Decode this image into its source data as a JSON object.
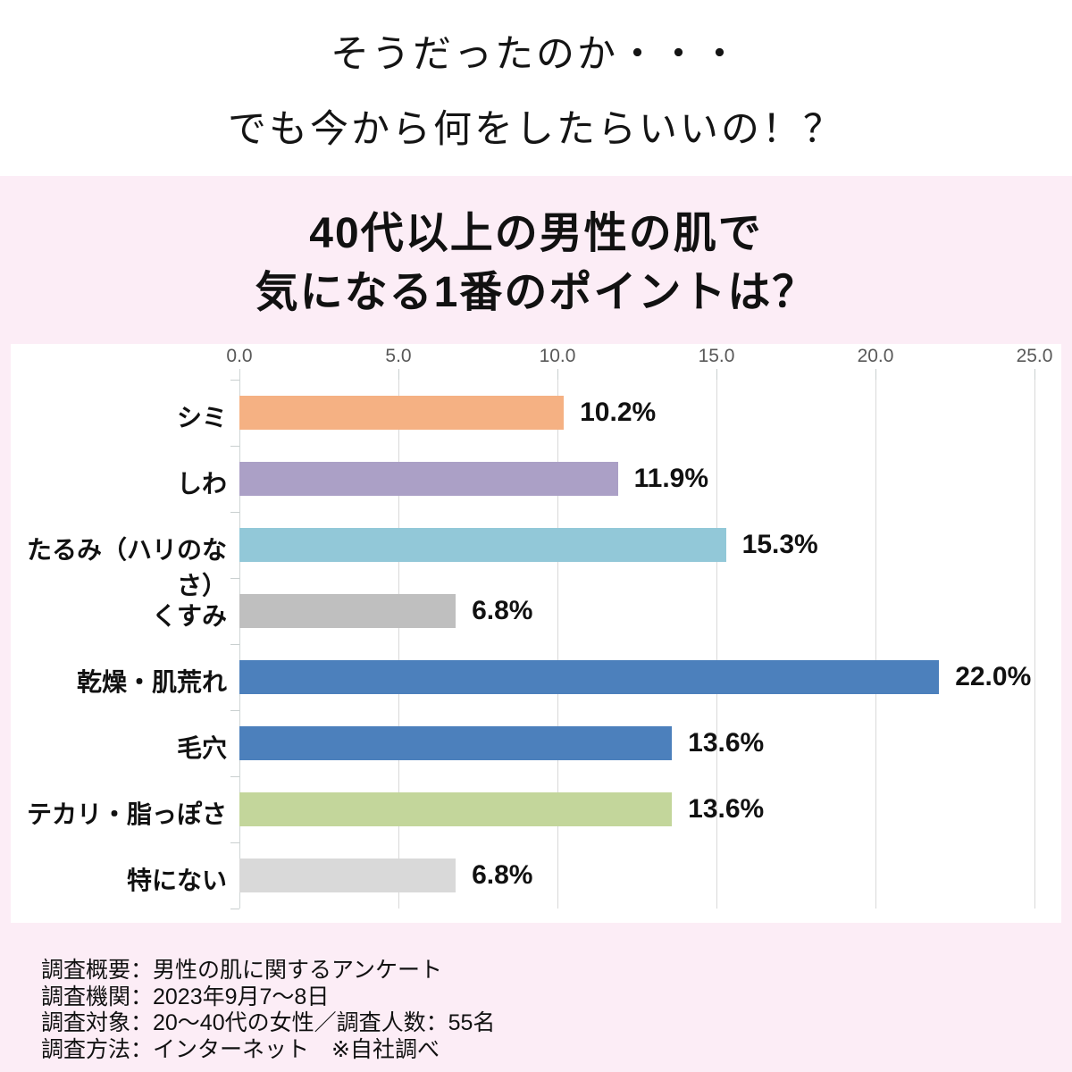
{
  "header": {
    "line1": "そうだったのか・・・",
    "line2": "でも今から何をしたらいいの！？"
  },
  "title": {
    "line1": "40代以上の男性の肌で",
    "line2": "気になる1番のポイントは？"
  },
  "chart_data": {
    "type": "bar",
    "orientation": "horizontal",
    "title": "40代以上の男性の肌で気になる1番のポイントは？",
    "categories": [
      "シミ",
      "しわ",
      "たるみ（ハリのなさ）",
      "くすみ",
      "乾燥・肌荒れ",
      "毛穴",
      "テカリ・脂っぽさ",
      "特にない"
    ],
    "values": [
      10.2,
      11.9,
      15.3,
      6.8,
      22.0,
      13.6,
      13.6,
      6.8
    ],
    "value_labels": [
      "10.2%",
      "11.9%",
      "15.3%",
      "6.8%",
      "22.0%",
      "13.6%",
      "13.6%",
      "6.8%"
    ],
    "bar_colors": [
      "#F5B183",
      "#ABA0C6",
      "#92C8D8",
      "#BFBFBF",
      "#4C80BC",
      "#4C80BC",
      "#C3D69B",
      "#D9D9D9"
    ],
    "x_ticks": [
      "0.0",
      "5.0",
      "10.0",
      "15.0",
      "20.0",
      "25.0"
    ],
    "x_tick_values": [
      0,
      5,
      10,
      15,
      20,
      25
    ],
    "xlim": [
      0,
      25
    ],
    "grid": true,
    "legend": false,
    "xlabel": "",
    "ylabel": ""
  },
  "footer": {
    "lines": [
      "調査概要：男性の肌に関するアンケート",
      "調査機関：2023年9月7～8日",
      "調査対象：20～40代の女性／調査人数：55名",
      "調査方法：インターネット　※自社調べ"
    ]
  },
  "colors": {
    "background_pink": "#FCEDF6",
    "panel_white": "#FFFFFF",
    "axis_text": "#595959",
    "gridline": "#D9D9D9",
    "text": "#111111"
  }
}
